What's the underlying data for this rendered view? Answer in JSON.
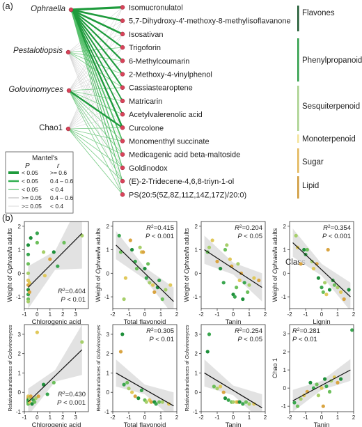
{
  "panel_a": {
    "tag": "(a)",
    "sources": [
      "Ophraella",
      "Pestalotiopsis",
      "Golovinomyces",
      "Chao1"
    ],
    "sources_italic": [
      true,
      true,
      true,
      false
    ],
    "compounds": [
      "Isomucronulatol",
      "5,7-Dihydroxy-4'-methoxy-8-methylisoflavanone",
      "Isosativan",
      "Trigoforin",
      "6-Methylcoumarin",
      "2-Methoxy-4-vinylphenol",
      "Cassiastearoptene",
      "Matricarin",
      "Acetylvalerenolic acid",
      "Curcolone",
      "Monomenthyl succinate",
      "Medicagenic acid beta-maltoside",
      "Goldinodox",
      "(E)-2-Tridecene-4,6,8-triyn-1-ol",
      "PS(20:5(5Z,8Z,11Z,14Z,17Z)/20:0)"
    ],
    "classes": [
      {
        "label": "Flavones",
        "color": "#1f5a32"
      },
      {
        "label": "Phenylpropanoids",
        "color": "#2f9e49"
      },
      {
        "label": "Sesquiterpenoid",
        "color": "#a9d18e"
      },
      {
        "label": "Monoterpenoid",
        "color": "#f3e39a"
      },
      {
        "label": "Sugar",
        "color": "#e3b75a"
      },
      {
        "label": "Lipid",
        "color": "#cf9a3a"
      }
    ],
    "class_title": "Class",
    "legend": {
      "title": "Mantel's",
      "col_p": "P",
      "col_r": "r",
      "rows": [
        {
          "p": "< 0.05",
          "r": ">= 0.6",
          "color": "#1e9b3c"
        },
        {
          "p": "< 0.05",
          "r": "0.4 – 0.6",
          "color": "#2fae4f"
        },
        {
          "p": "< 0.05",
          "r": "< 0.4",
          "color": "#55bf6a"
        },
        {
          "p": ">= 0.05",
          "r": "0.4 – 0.6",
          "color": "#bdbdbd"
        },
        {
          "p": ">= 0.05",
          "r": "< 0.4",
          "color": "#d0d0d0"
        }
      ]
    }
  },
  "panel_b_tag": "(b)",
  "chart_data": [
    {
      "type": "scatter",
      "xlabel": "Chlorogenic acid",
      "ylabel": "Weight of Ophraella adults",
      "ylabel_parts": [
        "Weight of ",
        "Ophraella",
        " adults"
      ],
      "xticks": [
        -1,
        0,
        1,
        2,
        3
      ],
      "yticks": [
        -1,
        0,
        1,
        2
      ],
      "xlim": [
        -1,
        4
      ],
      "ylim": [
        -1.5,
        2.2
      ],
      "stat_r2": "0.404",
      "stat_p": "P < 0.01",
      "stat_pos": "bottom-right",
      "fit": {
        "x": [
          -0.7,
          3.5
        ],
        "y": [
          -0.6,
          1.7
        ]
      },
      "ci_width": [
        0.9,
        0.4,
        1.5
      ],
      "points": [
        [
          -0.7,
          1.2
        ],
        [
          -0.7,
          0.8
        ],
        [
          -0.7,
          0.4
        ],
        [
          -0.7,
          0.0
        ],
        [
          -0.7,
          -0.3
        ],
        [
          -0.7,
          -0.5
        ],
        [
          -0.7,
          -0.7
        ],
        [
          -0.7,
          -0.9
        ],
        [
          -0.7,
          -1.1
        ],
        [
          -0.7,
          -1.2
        ],
        [
          -0.6,
          -0.4
        ],
        [
          -0.6,
          -0.8
        ],
        [
          -0.5,
          1.5
        ],
        [
          0.0,
          1.7
        ],
        [
          0.0,
          1.3
        ],
        [
          0.5,
          0.9
        ],
        [
          0.6,
          -0.1
        ],
        [
          1.0,
          0.6
        ],
        [
          1.3,
          0.9
        ],
        [
          1.6,
          0.3
        ],
        [
          2.1,
          1.3
        ],
        [
          3.5,
          1.6
        ]
      ]
    },
    {
      "type": "scatter",
      "xlabel": "Total flavonoid",
      "ylabel": "Weight of Ophraella adults",
      "ylabel_parts": [
        "Weight of ",
        "Ophraella",
        " adults"
      ],
      "xticks": [
        -2,
        -1,
        0,
        1,
        2
      ],
      "yticks": [
        -1,
        0,
        1,
        2
      ],
      "xlim": [
        -2,
        2
      ],
      "ylim": [
        -1.5,
        2.2
      ],
      "stat_r2": "0.415",
      "stat_p": "P < 0.001",
      "stat_pos": "top-right",
      "fit": {
        "x": [
          -1.8,
          1.8
        ],
        "y": [
          1.2,
          -1.2
        ]
      },
      "ci_width": [
        0.6,
        0.25,
        0.6
      ],
      "points": [
        [
          -1.6,
          1.6
        ],
        [
          -1.5,
          0.9
        ],
        [
          -1.3,
          -1.1
        ],
        [
          -1.2,
          -0.2
        ],
        [
          -0.9,
          1.4
        ],
        [
          -0.8,
          1.0
        ],
        [
          -0.6,
          0.5
        ],
        [
          -0.5,
          0.2
        ],
        [
          -0.3,
          1.1
        ],
        [
          -0.2,
          0.9
        ],
        [
          -0.1,
          0.9
        ],
        [
          0.0,
          0.2
        ],
        [
          0.1,
          -0.2
        ],
        [
          0.2,
          0.4
        ],
        [
          0.3,
          -0.4
        ],
        [
          0.5,
          -0.5
        ],
        [
          0.6,
          -0.8
        ],
        [
          0.8,
          -0.6
        ],
        [
          0.9,
          -0.3
        ],
        [
          1.1,
          -1.1
        ],
        [
          1.3,
          -0.7
        ],
        [
          1.6,
          -0.5
        ]
      ]
    },
    {
      "type": "scatter",
      "xlabel": "Tanin",
      "ylabel": "Weight of Ophraella adults",
      "ylabel_parts": [
        "Weight of ",
        "Ophraella",
        " adults"
      ],
      "xticks": [
        -2,
        -1,
        0,
        1,
        2
      ],
      "yticks": [
        -1,
        0,
        1,
        2
      ],
      "xlim": [
        -2,
        2
      ],
      "ylim": [
        -1.5,
        2.2
      ],
      "stat_r2": "0.204",
      "stat_p": "P < 0.05",
      "stat_pos": "top-right",
      "fit": {
        "x": [
          -1.8,
          1.8
        ],
        "y": [
          1.0,
          -0.6
        ]
      },
      "ci_width": [
        0.6,
        0.25,
        0.6
      ],
      "points": [
        [
          -1.6,
          0.9
        ],
        [
          -1.5,
          1.1
        ],
        [
          -1.3,
          1.4
        ],
        [
          -1.0,
          0.5
        ],
        [
          -0.8,
          0.2
        ],
        [
          -0.6,
          -0.4
        ],
        [
          -0.5,
          1.0
        ],
        [
          -0.4,
          1.2
        ],
        [
          -0.2,
          0.6
        ],
        [
          -0.1,
          0.3
        ],
        [
          0.0,
          -0.9
        ],
        [
          0.1,
          -1.0
        ],
        [
          0.2,
          -0.6
        ],
        [
          0.3,
          0.4
        ],
        [
          0.4,
          -0.3
        ],
        [
          0.5,
          0.0
        ],
        [
          0.6,
          -1.1
        ],
        [
          0.7,
          -0.4
        ],
        [
          0.9,
          -0.8
        ],
        [
          1.0,
          -0.5
        ],
        [
          1.3,
          -0.2
        ],
        [
          1.6,
          -0.3
        ]
      ]
    },
    {
      "type": "scatter",
      "xlabel": "Lignin",
      "ylabel": "Weight of Ophraella adults",
      "ylabel_parts": [
        "Weight of ",
        "Ophraella",
        " adults"
      ],
      "xticks": [
        -2,
        -1,
        0,
        1,
        2
      ],
      "yticks": [
        -1,
        0,
        1,
        2
      ],
      "xlim": [
        -2,
        2
      ],
      "ylim": [
        -1.5,
        2.2
      ],
      "stat_r2": "0.354",
      "stat_p": "P < 0.001",
      "stat_pos": "top-right",
      "fit": {
        "x": [
          -1.8,
          1.8
        ],
        "y": [
          1.3,
          -1.0
        ]
      },
      "ci_width": [
        0.6,
        0.25,
        0.6
      ],
      "points": [
        [
          -1.6,
          1.6
        ],
        [
          -1.5,
          1.1
        ],
        [
          -1.3,
          0.4
        ],
        [
          -1.1,
          1.0
        ],
        [
          -1.0,
          0.8
        ],
        [
          -0.9,
          1.0
        ],
        [
          -0.6,
          0.5
        ],
        [
          -0.5,
          0.2
        ],
        [
          -0.3,
          0.4
        ],
        [
          -0.2,
          -0.2
        ],
        [
          0.0,
          -0.6
        ],
        [
          0.1,
          -0.8
        ],
        [
          0.2,
          -0.4
        ],
        [
          0.3,
          -0.9
        ],
        [
          0.4,
          1.0
        ],
        [
          0.5,
          -0.7
        ],
        [
          0.7,
          -0.3
        ],
        [
          0.8,
          -0.5
        ],
        [
          1.0,
          -0.6
        ],
        [
          1.2,
          -0.8
        ],
        [
          1.4,
          -1.1
        ],
        [
          1.7,
          -0.7
        ]
      ]
    },
    {
      "type": "scatter",
      "xlabel": "Chlorogenic acid",
      "ylabel": "Relativeabundances of Golovinomyces",
      "ylabel_parts": [
        "Relativeabundances of ",
        "Golovinomyces",
        ""
      ],
      "xticks": [
        -1,
        0,
        1,
        2,
        3
      ],
      "yticks": [
        -1,
        0,
        1,
        2,
        3
      ],
      "xlim": [
        -1,
        4
      ],
      "ylim": [
        -1,
        3.5
      ],
      "stat_r2": "0.430",
      "stat_p": "P < 0.001",
      "stat_pos": "bottom-right",
      "fit": {
        "x": [
          -0.7,
          3.5
        ],
        "y": [
          -0.5,
          2.2
        ]
      },
      "ci_width": [
        0.7,
        0.3,
        1.3
      ],
      "points": [
        [
          -0.7,
          -0.2
        ],
        [
          -0.7,
          -0.3
        ],
        [
          -0.7,
          -0.4
        ],
        [
          -0.7,
          -0.5
        ],
        [
          -0.7,
          -0.6
        ],
        [
          -0.6,
          -0.3
        ],
        [
          -0.6,
          -0.5
        ],
        [
          -0.5,
          -0.2
        ],
        [
          -0.4,
          -0.6
        ],
        [
          -0.3,
          -0.4
        ],
        [
          -0.2,
          -0.5
        ],
        [
          -0.1,
          -0.3
        ],
        [
          0.0,
          3.1
        ],
        [
          0.1,
          -0.2
        ],
        [
          0.5,
          0.4
        ],
        [
          0.8,
          -0.1
        ],
        [
          1.3,
          0.5
        ],
        [
          3.5,
          2.6
        ]
      ]
    },
    {
      "type": "scatter",
      "xlabel": "Total flavonoid",
      "ylabel": "Relativeabundances of Golovinomyces",
      "ylabel_parts": [
        "Relativeabundances of ",
        "Golovinomyces",
        ""
      ],
      "xticks": [
        -2,
        -1,
        0,
        1,
        2
      ],
      "yticks": [
        -1,
        0,
        1,
        2,
        3
      ],
      "xlim": [
        -2,
        2
      ],
      "ylim": [
        -1,
        3.5
      ],
      "stat_r2": "0.305",
      "stat_p": "P < 0.01",
      "stat_pos": "top-right",
      "fit": {
        "x": [
          -1.8,
          1.8
        ],
        "y": [
          1.0,
          -0.7
        ]
      },
      "ci_width": [
        0.7,
        0.25,
        0.7
      ],
      "points": [
        [
          -1.5,
          2.1
        ],
        [
          -1.4,
          3.0
        ],
        [
          -1.3,
          0.4
        ],
        [
          -1.1,
          0.5
        ],
        [
          -1.0,
          0.2
        ],
        [
          -0.8,
          0.0
        ],
        [
          -0.6,
          -0.2
        ],
        [
          -0.4,
          -0.3
        ],
        [
          -0.2,
          0.1
        ],
        [
          0.0,
          -0.4
        ],
        [
          0.1,
          -0.5
        ],
        [
          0.3,
          -0.4
        ],
        [
          0.4,
          -0.5
        ],
        [
          0.6,
          -0.5
        ],
        [
          0.7,
          -0.6
        ],
        [
          0.9,
          -0.5
        ],
        [
          1.1,
          -0.5
        ],
        [
          1.5,
          -0.6
        ]
      ]
    },
    {
      "type": "scatter",
      "xlabel": "Tanin",
      "ylabel": "Relativeabundances of Golovinomyces",
      "ylabel_parts": [
        "Relativeabundances of ",
        "Golovinomyces",
        ""
      ],
      "xticks": [
        -2,
        -1,
        0,
        1,
        2
      ],
      "yticks": [
        -1,
        0,
        1,
        2,
        3
      ],
      "xlim": [
        -2,
        2
      ],
      "ylim": [
        -1,
        3.5
      ],
      "stat_r2": "0.254",
      "stat_p": "P < 0.05",
      "stat_pos": "top-right",
      "fit": {
        "x": [
          -1.8,
          1.8
        ],
        "y": [
          1.0,
          -0.8
        ]
      },
      "ci_width": [
        0.7,
        0.25,
        0.7
      ],
      "points": [
        [
          -1.6,
          2.1
        ],
        [
          -1.5,
          3.0
        ],
        [
          -1.2,
          0.3
        ],
        [
          -1.0,
          0.2
        ],
        [
          -0.8,
          0.3
        ],
        [
          -0.6,
          0.0
        ],
        [
          -0.5,
          -0.3
        ],
        [
          -0.3,
          -0.4
        ],
        [
          -0.1,
          -0.5
        ],
        [
          0.0,
          -0.5
        ],
        [
          0.2,
          -0.5
        ],
        [
          0.3,
          -0.5
        ],
        [
          0.4,
          -0.5
        ],
        [
          0.6,
          -0.6
        ],
        [
          0.8,
          -0.5
        ],
        [
          1.0,
          -0.6
        ],
        [
          1.3,
          -0.6
        ]
      ]
    },
    {
      "type": "scatter",
      "xlabel": "Tanin",
      "ylabel": "Chao 1",
      "ylabel_parts": [
        "Chao 1",
        "",
        ""
      ],
      "xticks": [
        -2,
        -1,
        0,
        1,
        2
      ],
      "yticks": [
        -1,
        0,
        1,
        2,
        3
      ],
      "xlim": [
        -2,
        2
      ],
      "ylim": [
        -1.3,
        3.5
      ],
      "stat_r2": "0.281",
      "stat_p": "P < 0.01",
      "stat_pos": "top-left",
      "fit": {
        "x": [
          -1.8,
          1.8
        ],
        "y": [
          -0.7,
          1.0
        ]
      },
      "ci_width": [
        0.6,
        0.25,
        0.6
      ],
      "points": [
        [
          -1.7,
          -0.8
        ],
        [
          -1.5,
          -1.0
        ],
        [
          -1.3,
          -0.6
        ],
        [
          -1.1,
          -0.4
        ],
        [
          -0.9,
          -0.2
        ],
        [
          -0.7,
          0.3
        ],
        [
          -0.5,
          0.0
        ],
        [
          -0.3,
          0.2
        ],
        [
          -0.2,
          -0.4
        ],
        [
          0.0,
          0.0
        ],
        [
          0.1,
          -1.0
        ],
        [
          0.2,
          0.5
        ],
        [
          0.3,
          0.1
        ],
        [
          0.5,
          -0.2
        ],
        [
          0.6,
          0.4
        ],
        [
          0.8,
          0.6
        ],
        [
          1.0,
          0.3
        ],
        [
          1.2,
          0.5
        ],
        [
          1.9,
          3.2
        ]
      ]
    }
  ]
}
